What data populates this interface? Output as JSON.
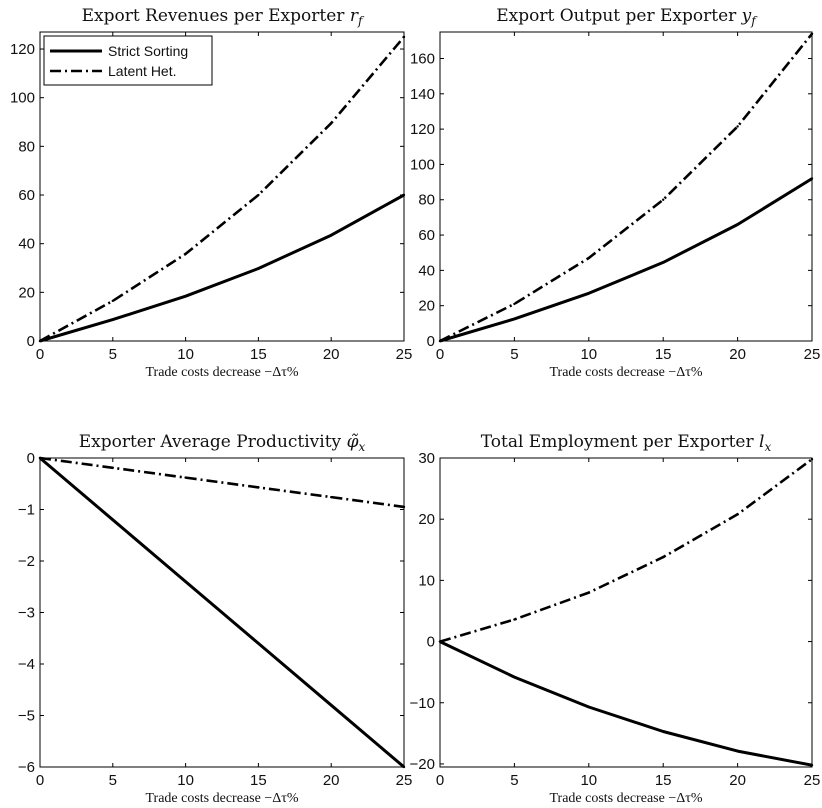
{
  "chart_data": [
    {
      "type": "line",
      "title": "Export Revenues per Exporter r_f",
      "title_main": "Export Revenues per Exporter ",
      "title_symbol": "r",
      "title_sub": "f",
      "xlabel_main": "Trade costs decrease −Δτ",
      "xlabel_tail": "%",
      "x": [
        0,
        5,
        10,
        15,
        20,
        25
      ],
      "xlim": [
        0,
        25
      ],
      "ylim": [
        0,
        127
      ],
      "xticks": [
        0,
        5,
        10,
        15,
        20,
        25
      ],
      "yticks": [
        0,
        20,
        40,
        60,
        80,
        100,
        120
      ],
      "legend": "top-left",
      "series": [
        {
          "name": "Strict Sorting",
          "style": "solid",
          "values": [
            0,
            8.8,
            18.4,
            29.8,
            43.5,
            60.0
          ]
        },
        {
          "name": "Latent Het.",
          "style": "dashdot",
          "values": [
            0,
            16.5,
            35.8,
            60.0,
            89.5,
            125.0
          ]
        }
      ]
    },
    {
      "type": "line",
      "title": "Export Output per Exporter y_f",
      "title_main": "Export Output per Exporter ",
      "title_symbol": "y",
      "title_sub": "f",
      "xlabel_main": "Trade costs decrease −Δτ",
      "xlabel_tail": "%",
      "x": [
        0,
        5,
        10,
        15,
        20,
        25
      ],
      "xlim": [
        0,
        25
      ],
      "ylim": [
        0,
        175
      ],
      "xticks": [
        0,
        5,
        10,
        15,
        20,
        25
      ],
      "yticks": [
        0,
        20,
        40,
        60,
        80,
        100,
        120,
        140,
        160
      ],
      "legend": "none",
      "series": [
        {
          "name": "Strict Sorting",
          "style": "solid",
          "values": [
            0,
            12.5,
            27.0,
            44.5,
            66.0,
            92.0
          ]
        },
        {
          "name": "Latent Het.",
          "style": "dashdot",
          "values": [
            0,
            21.0,
            47.0,
            80.0,
            121.5,
            174.0
          ]
        }
      ]
    },
    {
      "type": "line",
      "title": "Exporter Average Productivity φ̃_x",
      "title_main": "Exporter Average Productivity ",
      "title_symbol": "φ̃",
      "title_sub": "x",
      "xlabel_main": "Trade costs decrease −Δτ",
      "xlabel_tail": "%",
      "x": [
        0,
        5,
        10,
        15,
        20,
        25
      ],
      "xlim": [
        0,
        25
      ],
      "ylim": [
        -6,
        0
      ],
      "xticks": [
        0,
        5,
        10,
        15,
        20,
        25
      ],
      "yticks": [
        0,
        -1,
        -2,
        -3,
        -4,
        -5,
        -6
      ],
      "ytick_labels": [
        "0",
        "−1",
        "−2",
        "−3",
        "−4",
        "−5",
        "−6"
      ],
      "legend": "none",
      "series": [
        {
          "name": "Strict Sorting",
          "style": "solid",
          "values": [
            0,
            -1.2,
            -2.4,
            -3.6,
            -4.8,
            -6.0
          ]
        },
        {
          "name": "Latent Het.",
          "style": "dashdot",
          "values": [
            0,
            -0.19,
            -0.38,
            -0.57,
            -0.76,
            -0.95
          ]
        }
      ]
    },
    {
      "type": "line",
      "title": "Total Employment per Exporter l_x",
      "title_main": "Total Employment per Exporter ",
      "title_symbol": "l",
      "title_sub": "x",
      "xlabel_main": "Trade costs decrease −Δτ",
      "xlabel_tail": "%",
      "x": [
        0,
        5,
        10,
        15,
        20,
        25
      ],
      "xlim": [
        0,
        25
      ],
      "ylim": [
        -20.5,
        30
      ],
      "xticks": [
        0,
        5,
        10,
        15,
        20,
        25
      ],
      "yticks": [
        30,
        20,
        10,
        0,
        -10,
        -20
      ],
      "ytick_labels": [
        "30",
        "20",
        "10",
        "0",
        "−10",
        "−20"
      ],
      "legend": "none",
      "series": [
        {
          "name": "Strict Sorting",
          "style": "solid",
          "values": [
            0,
            -5.8,
            -10.7,
            -14.7,
            -17.9,
            -20.2
          ]
        },
        {
          "name": "Latent Het.",
          "style": "dashdot",
          "values": [
            0,
            3.6,
            8.0,
            13.8,
            20.8,
            29.8
          ]
        }
      ]
    }
  ]
}
